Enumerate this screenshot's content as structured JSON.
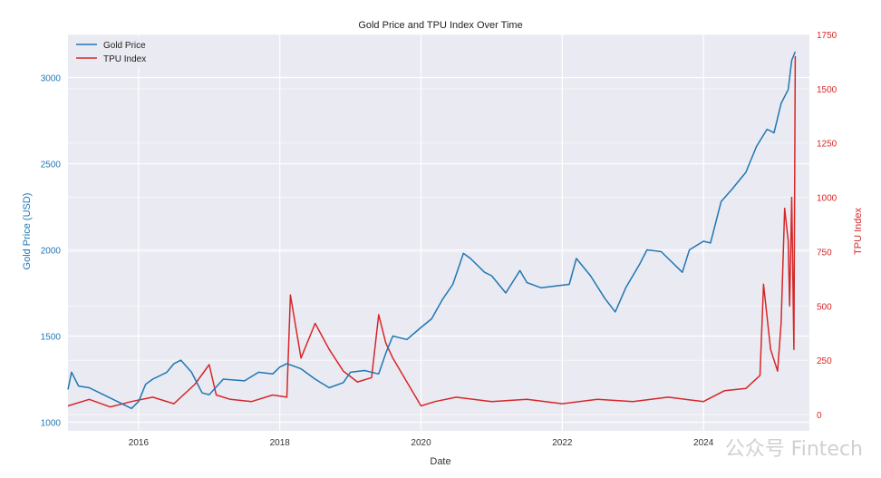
{
  "chart_data": {
    "type": "line",
    "title": "Gold Price and TPU Index Over Time",
    "xlabel": "Date",
    "ylabel_left": "Gold Price (USD)",
    "ylabel_right": "TPU Index",
    "xlim": [
      2015.0,
      2025.5
    ],
    "ylim_left": [
      950,
      3250
    ],
    "ylim_right": [
      -75,
      1750
    ],
    "x_ticks": [
      2016,
      2018,
      2020,
      2022,
      2024
    ],
    "x_tick_labels": [
      "2016",
      "2018",
      "2020",
      "2022",
      "2024"
    ],
    "y_left_ticks": [
      1000,
      1500,
      2000,
      2500,
      3000
    ],
    "y_right_ticks": [
      0,
      250,
      500,
      750,
      1000,
      1250,
      1500,
      1750
    ],
    "grid": true,
    "legend_position": "top-left",
    "colors": {
      "gold": "#1f77b4",
      "tpu": "#d62728",
      "background": "#eaeaf2"
    },
    "series": [
      {
        "name": "Gold Price",
        "axis": "left",
        "x": [
          2015.0,
          2015.05,
          2015.15,
          2015.3,
          2015.5,
          2015.7,
          2015.9,
          2016.0,
          2016.1,
          2016.2,
          2016.4,
          2016.5,
          2016.6,
          2016.75,
          2016.9,
          2017.0,
          2017.2,
          2017.5,
          2017.7,
          2017.9,
          2018.0,
          2018.1,
          2018.3,
          2018.5,
          2018.7,
          2018.9,
          2019.0,
          2019.2,
          2019.4,
          2019.5,
          2019.6,
          2019.8,
          2020.0,
          2020.15,
          2020.3,
          2020.45,
          2020.6,
          2020.7,
          2020.9,
          2021.0,
          2021.2,
          2021.4,
          2021.5,
          2021.7,
          2021.9,
          2022.1,
          2022.2,
          2022.4,
          2022.6,
          2022.75,
          2022.9,
          2023.1,
          2023.2,
          2023.4,
          2023.5,
          2023.7,
          2023.8,
          2024.0,
          2024.1,
          2024.25,
          2024.4,
          2024.6,
          2024.75,
          2024.9,
          2025.0,
          2025.1,
          2025.2,
          2025.25,
          2025.3
        ],
        "y": [
          1190,
          1290,
          1210,
          1200,
          1160,
          1120,
          1080,
          1120,
          1220,
          1250,
          1290,
          1340,
          1360,
          1290,
          1170,
          1160,
          1250,
          1240,
          1290,
          1280,
          1320,
          1340,
          1310,
          1250,
          1200,
          1230,
          1290,
          1300,
          1280,
          1400,
          1500,
          1480,
          1550,
          1600,
          1710,
          1800,
          1980,
          1950,
          1870,
          1850,
          1750,
          1880,
          1810,
          1780,
          1790,
          1800,
          1950,
          1850,
          1720,
          1640,
          1780,
          1920,
          2000,
          1990,
          1950,
          1870,
          2000,
          2050,
          2040,
          2280,
          2350,
          2450,
          2600,
          2700,
          2680,
          2850,
          2930,
          3100,
          3150
        ]
      },
      {
        "name": "TPU Index",
        "axis": "right",
        "x": [
          2015.0,
          2015.3,
          2015.6,
          2015.9,
          2016.2,
          2016.5,
          2016.8,
          2017.0,
          2017.1,
          2017.3,
          2017.6,
          2017.9,
          2018.1,
          2018.15,
          2018.3,
          2018.5,
          2018.7,
          2018.9,
          2019.1,
          2019.3,
          2019.4,
          2019.5,
          2019.6,
          2019.8,
          2020.0,
          2020.2,
          2020.5,
          2021.0,
          2021.5,
          2022.0,
          2022.5,
          2023.0,
          2023.5,
          2024.0,
          2024.3,
          2024.6,
          2024.8,
          2024.85,
          2024.95,
          2025.05,
          2025.1,
          2025.15,
          2025.2,
          2025.22,
          2025.25,
          2025.28,
          2025.3
        ],
        "y": [
          40,
          70,
          35,
          60,
          80,
          50,
          140,
          230,
          90,
          70,
          60,
          90,
          80,
          550,
          260,
          420,
          300,
          200,
          150,
          170,
          460,
          330,
          260,
          150,
          40,
          60,
          80,
          60,
          70,
          50,
          70,
          60,
          80,
          60,
          110,
          120,
          180,
          600,
          300,
          200,
          420,
          950,
          800,
          500,
          1000,
          300,
          1650
        ]
      }
    ]
  },
  "watermark_text": "公众号 Fintech"
}
